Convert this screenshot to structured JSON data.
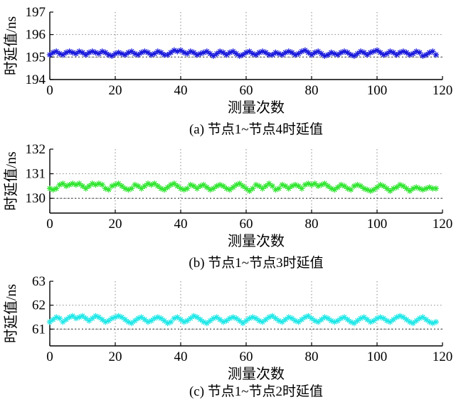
{
  "chart_data": [
    {
      "type": "scatter",
      "caption": "(a) 节点1~节点4时延值",
      "xlabel": "测量次数",
      "ylabel": "时延值/ns",
      "xlim": [
        0,
        120
      ],
      "ylim": [
        194,
        197
      ],
      "xticks": [
        0,
        20,
        40,
        60,
        80,
        100,
        120
      ],
      "yticks": [
        194,
        195,
        196,
        197
      ],
      "grid": "dotted",
      "series": [
        {
          "color": "#1a1adc",
          "marker": "*",
          "x_start": 0,
          "x_end": 118,
          "values": [
            195.1,
            195.2,
            195.25,
            195.15,
            195.1,
            195.2,
            195.25,
            195.2,
            195.15,
            195.25,
            195.2,
            195.1,
            195.2,
            195.25,
            195.2,
            195.15,
            195.25,
            195.2,
            195.1,
            195.05,
            195.15,
            195.2,
            195.15,
            195.1,
            195.2,
            195.25,
            195.15,
            195.1,
            195.2,
            195.25,
            195.2,
            195.1,
            195.15,
            195.25,
            195.2,
            195.1,
            195.1,
            195.2,
            195.3,
            195.25,
            195.3,
            195.2,
            195.15,
            195.25,
            195.2,
            195.1,
            195.15,
            195.2,
            195.25,
            195.15,
            195.05,
            195.15,
            195.25,
            195.2,
            195.1,
            195.2,
            195.25,
            195.15,
            195.05,
            195.1,
            195.2,
            195.25,
            195.15,
            195.1,
            195.2,
            195.25,
            195.2,
            195.1,
            195.1,
            195.2,
            195.15,
            195.1,
            195.2,
            195.25,
            195.2,
            195.1,
            195.15,
            195.25,
            195.3,
            195.2,
            195.1,
            195.2,
            195.25,
            195.15,
            195.05,
            195.1,
            195.2,
            195.15,
            195.1,
            195.2,
            195.25,
            195.2,
            195.1,
            195.05,
            195.15,
            195.25,
            195.2,
            195.1,
            195.2,
            195.25,
            195.3,
            195.2,
            195.1,
            195.15,
            195.25,
            195.2,
            195.1,
            195.2,
            195.25,
            195.2,
            195.1,
            195.15,
            195.25,
            195.2,
            195.05,
            195.1,
            195.2,
            195.25,
            195.1
          ]
        }
      ],
      "reference_line": {
        "axis": "y",
        "value": 195.0,
        "color": "#555555"
      }
    },
    {
      "type": "scatter",
      "caption": "(b) 节点1~节点3时延值",
      "xlabel": "测量次数",
      "ylabel": "时延值/ns",
      "xlim": [
        0,
        120
      ],
      "ylim": [
        129.4,
        132
      ],
      "xticks": [
        0,
        20,
        40,
        60,
        80,
        100,
        120
      ],
      "yticks": [
        130,
        131,
        132
      ],
      "grid": "dotted",
      "series": [
        {
          "color": "#33e633",
          "marker": "*",
          "x_start": 0,
          "x_end": 118,
          "values": [
            130.4,
            130.35,
            130.4,
            130.55,
            130.6,
            130.5,
            130.55,
            130.6,
            130.55,
            130.6,
            130.5,
            130.4,
            130.5,
            130.6,
            130.55,
            130.6,
            130.55,
            130.4,
            130.35,
            130.5,
            130.55,
            130.6,
            130.5,
            130.4,
            130.35,
            130.4,
            130.55,
            130.5,
            130.4,
            130.5,
            130.6,
            130.55,
            130.6,
            130.5,
            130.4,
            130.35,
            130.45,
            130.55,
            130.6,
            130.5,
            130.4,
            130.35,
            130.4,
            130.55,
            130.5,
            130.4,
            130.5,
            130.55,
            130.45,
            130.35,
            130.4,
            130.5,
            130.55,
            130.5,
            130.4,
            130.35,
            130.45,
            130.55,
            130.6,
            130.5,
            130.4,
            130.3,
            130.4,
            130.55,
            130.5,
            130.4,
            130.5,
            130.6,
            130.5,
            130.35,
            130.4,
            130.55,
            130.5,
            130.4,
            130.5,
            130.55,
            130.5,
            130.4,
            130.55,
            130.6,
            130.55,
            130.6,
            130.5,
            130.55,
            130.6,
            130.5,
            130.4,
            130.35,
            130.45,
            130.55,
            130.5,
            130.4,
            130.35,
            130.5,
            130.55,
            130.5,
            130.4,
            130.35,
            130.3,
            130.35,
            130.45,
            130.55,
            130.5,
            130.4,
            130.3,
            130.4,
            130.45,
            130.55,
            130.5,
            130.4,
            130.3,
            130.4,
            130.45,
            130.4,
            130.35,
            130.4,
            130.45,
            130.4,
            130.4
          ]
        }
      ],
      "reference_line": {
        "axis": "y",
        "value": 130.0,
        "color": "#555555"
      }
    },
    {
      "type": "scatter",
      "caption": "(c) 节点1~节点2时延值",
      "xlabel": "测量次数",
      "ylabel": "时延值/ns",
      "xlim": [
        0,
        120
      ],
      "ylim": [
        60.3,
        63
      ],
      "xticks": [
        0,
        20,
        40,
        60,
        80,
        100,
        120
      ],
      "yticks": [
        61,
        62,
        63
      ],
      "grid": "dotted",
      "series": [
        {
          "color": "#22e8e8",
          "marker": "*",
          "x_start": 0,
          "x_end": 118,
          "values": [
            61.3,
            61.4,
            61.5,
            61.45,
            61.3,
            61.4,
            61.5,
            61.55,
            61.45,
            61.5,
            61.55,
            61.45,
            61.35,
            61.45,
            61.55,
            61.5,
            61.4,
            61.3,
            61.35,
            61.45,
            61.5,
            61.55,
            61.5,
            61.4,
            61.3,
            61.25,
            61.35,
            61.45,
            61.5,
            61.4,
            61.3,
            61.35,
            61.45,
            61.5,
            61.45,
            61.35,
            61.25,
            61.3,
            61.45,
            61.5,
            61.4,
            61.3,
            61.35,
            61.45,
            61.55,
            61.5,
            61.4,
            61.3,
            61.25,
            61.35,
            61.45,
            61.5,
            61.4,
            61.3,
            61.35,
            61.45,
            61.5,
            61.45,
            61.35,
            61.25,
            61.35,
            61.45,
            61.5,
            61.45,
            61.35,
            61.3,
            61.4,
            61.5,
            61.55,
            61.45,
            61.35,
            61.3,
            61.4,
            61.5,
            61.45,
            61.35,
            61.3,
            61.4,
            61.5,
            61.55,
            61.45,
            61.35,
            61.3,
            61.4,
            61.5,
            61.45,
            61.35,
            61.3,
            61.35,
            61.45,
            61.5,
            61.4,
            61.3,
            61.25,
            61.35,
            61.45,
            61.5,
            61.4,
            61.3,
            61.35,
            61.45,
            61.5,
            61.45,
            61.35,
            61.3,
            61.4,
            61.5,
            61.55,
            61.5,
            61.4,
            61.3,
            61.25,
            61.35,
            61.45,
            61.5,
            61.4,
            61.3,
            61.25,
            61.3
          ]
        }
      ],
      "reference_line": {
        "axis": "y",
        "value": 61.0,
        "color": "#555555"
      }
    }
  ]
}
